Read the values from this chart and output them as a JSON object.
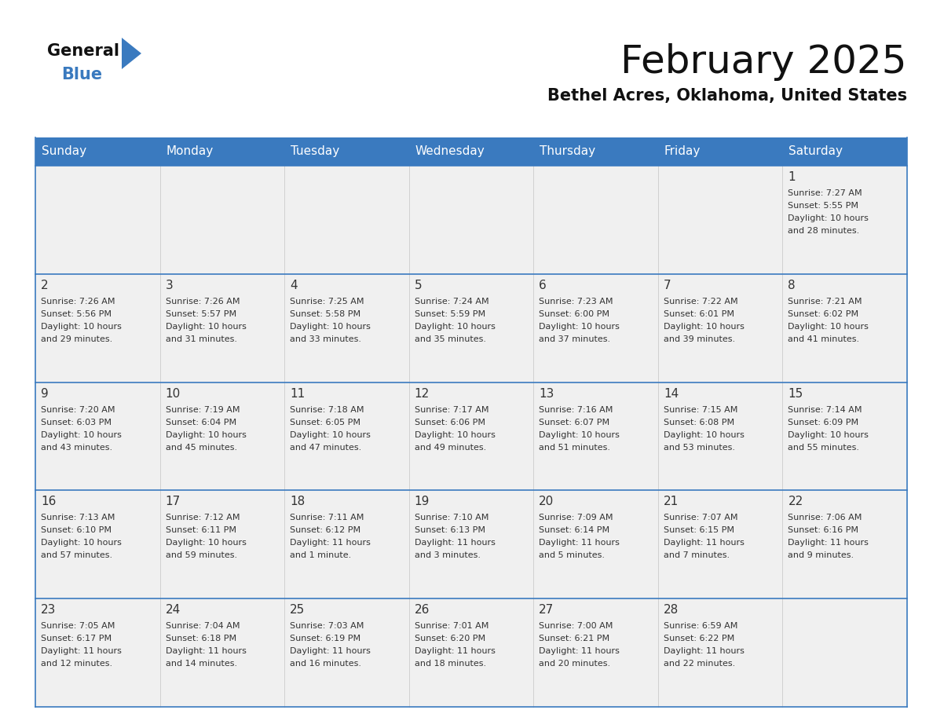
{
  "title": "February 2025",
  "subtitle": "Bethel Acres, Oklahoma, United States",
  "header_color": "#3a7abf",
  "header_text_color": "#ffffff",
  "cell_bg_color": "#f0f0f0",
  "text_color": "#333333",
  "border_color": "#3a7abf",
  "days_of_week": [
    "Sunday",
    "Monday",
    "Tuesday",
    "Wednesday",
    "Thursday",
    "Friday",
    "Saturday"
  ],
  "weeks": [
    [
      {
        "day": null,
        "info": null
      },
      {
        "day": null,
        "info": null
      },
      {
        "day": null,
        "info": null
      },
      {
        "day": null,
        "info": null
      },
      {
        "day": null,
        "info": null
      },
      {
        "day": null,
        "info": null
      },
      {
        "day": "1",
        "info": "Sunrise: 7:27 AM\nSunset: 5:55 PM\nDaylight: 10 hours\nand 28 minutes."
      }
    ],
    [
      {
        "day": "2",
        "info": "Sunrise: 7:26 AM\nSunset: 5:56 PM\nDaylight: 10 hours\nand 29 minutes."
      },
      {
        "day": "3",
        "info": "Sunrise: 7:26 AM\nSunset: 5:57 PM\nDaylight: 10 hours\nand 31 minutes."
      },
      {
        "day": "4",
        "info": "Sunrise: 7:25 AM\nSunset: 5:58 PM\nDaylight: 10 hours\nand 33 minutes."
      },
      {
        "day": "5",
        "info": "Sunrise: 7:24 AM\nSunset: 5:59 PM\nDaylight: 10 hours\nand 35 minutes."
      },
      {
        "day": "6",
        "info": "Sunrise: 7:23 AM\nSunset: 6:00 PM\nDaylight: 10 hours\nand 37 minutes."
      },
      {
        "day": "7",
        "info": "Sunrise: 7:22 AM\nSunset: 6:01 PM\nDaylight: 10 hours\nand 39 minutes."
      },
      {
        "day": "8",
        "info": "Sunrise: 7:21 AM\nSunset: 6:02 PM\nDaylight: 10 hours\nand 41 minutes."
      }
    ],
    [
      {
        "day": "9",
        "info": "Sunrise: 7:20 AM\nSunset: 6:03 PM\nDaylight: 10 hours\nand 43 minutes."
      },
      {
        "day": "10",
        "info": "Sunrise: 7:19 AM\nSunset: 6:04 PM\nDaylight: 10 hours\nand 45 minutes."
      },
      {
        "day": "11",
        "info": "Sunrise: 7:18 AM\nSunset: 6:05 PM\nDaylight: 10 hours\nand 47 minutes."
      },
      {
        "day": "12",
        "info": "Sunrise: 7:17 AM\nSunset: 6:06 PM\nDaylight: 10 hours\nand 49 minutes."
      },
      {
        "day": "13",
        "info": "Sunrise: 7:16 AM\nSunset: 6:07 PM\nDaylight: 10 hours\nand 51 minutes."
      },
      {
        "day": "14",
        "info": "Sunrise: 7:15 AM\nSunset: 6:08 PM\nDaylight: 10 hours\nand 53 minutes."
      },
      {
        "day": "15",
        "info": "Sunrise: 7:14 AM\nSunset: 6:09 PM\nDaylight: 10 hours\nand 55 minutes."
      }
    ],
    [
      {
        "day": "16",
        "info": "Sunrise: 7:13 AM\nSunset: 6:10 PM\nDaylight: 10 hours\nand 57 minutes."
      },
      {
        "day": "17",
        "info": "Sunrise: 7:12 AM\nSunset: 6:11 PM\nDaylight: 10 hours\nand 59 minutes."
      },
      {
        "day": "18",
        "info": "Sunrise: 7:11 AM\nSunset: 6:12 PM\nDaylight: 11 hours\nand 1 minute."
      },
      {
        "day": "19",
        "info": "Sunrise: 7:10 AM\nSunset: 6:13 PM\nDaylight: 11 hours\nand 3 minutes."
      },
      {
        "day": "20",
        "info": "Sunrise: 7:09 AM\nSunset: 6:14 PM\nDaylight: 11 hours\nand 5 minutes."
      },
      {
        "day": "21",
        "info": "Sunrise: 7:07 AM\nSunset: 6:15 PM\nDaylight: 11 hours\nand 7 minutes."
      },
      {
        "day": "22",
        "info": "Sunrise: 7:06 AM\nSunset: 6:16 PM\nDaylight: 11 hours\nand 9 minutes."
      }
    ],
    [
      {
        "day": "23",
        "info": "Sunrise: 7:05 AM\nSunset: 6:17 PM\nDaylight: 11 hours\nand 12 minutes."
      },
      {
        "day": "24",
        "info": "Sunrise: 7:04 AM\nSunset: 6:18 PM\nDaylight: 11 hours\nand 14 minutes."
      },
      {
        "day": "25",
        "info": "Sunrise: 7:03 AM\nSunset: 6:19 PM\nDaylight: 11 hours\nand 16 minutes."
      },
      {
        "day": "26",
        "info": "Sunrise: 7:01 AM\nSunset: 6:20 PM\nDaylight: 11 hours\nand 18 minutes."
      },
      {
        "day": "27",
        "info": "Sunrise: 7:00 AM\nSunset: 6:21 PM\nDaylight: 11 hours\nand 20 minutes."
      },
      {
        "day": "28",
        "info": "Sunrise: 6:59 AM\nSunset: 6:22 PM\nDaylight: 11 hours\nand 22 minutes."
      },
      {
        "day": null,
        "info": null
      }
    ]
  ],
  "logo_general_color": "#111111",
  "logo_blue_color": "#3a7abf",
  "logo_triangle_color": "#3a7abf",
  "title_fontsize": 36,
  "subtitle_fontsize": 15,
  "header_fontsize": 11,
  "day_num_fontsize": 11,
  "info_fontsize": 8
}
